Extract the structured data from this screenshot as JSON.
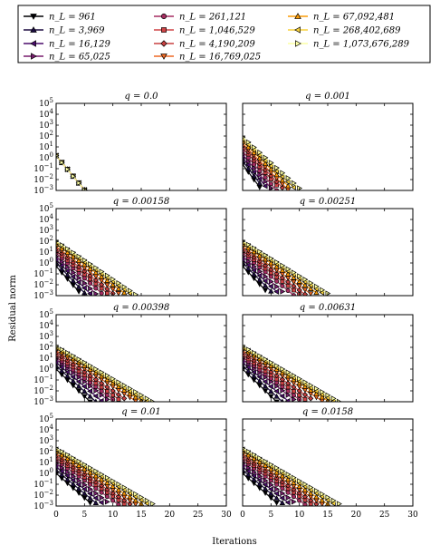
{
  "chart_data": {
    "type": "line",
    "xlabel": "Iterations",
    "ylabel": "Residual norm",
    "xlim": [
      0,
      30
    ],
    "ylim_exp": [
      -3,
      5
    ],
    "xticks": [
      "0",
      "5",
      "10",
      "15",
      "20",
      "25",
      "30"
    ],
    "yticks": [
      "10^5",
      "10^4",
      "10^3",
      "10^2",
      "10^1",
      "10^0",
      "10^-1",
      "10^-2",
      "10^-3"
    ],
    "y_scale": "log",
    "legend_placement": "top",
    "series": [
      {
        "name": "n_L = 961",
        "color": "#000004",
        "marker": "tri-down"
      },
      {
        "name": "n_L = 3,969",
        "color": "#1b0c41",
        "marker": "tri-up"
      },
      {
        "name": "n_L = 16,129",
        "color": "#4a0c6b",
        "marker": "tri-left"
      },
      {
        "name": "n_L = 65,025",
        "color": "#781c6d",
        "marker": "tri-right"
      },
      {
        "name": "n_L = 261,121",
        "color": "#a52c60",
        "marker": "circle"
      },
      {
        "name": "n_L = 1,046,529",
        "color": "#cf4446",
        "marker": "square"
      },
      {
        "name": "n_L = 4,190,209",
        "color": "#c84040",
        "marker": "diamond"
      },
      {
        "name": "n_L = 16,769,025",
        "color": "#ed6925",
        "marker": "tri-down"
      },
      {
        "name": "n_L = 67,092,481",
        "color": "#fb9b06",
        "marker": "tri-up"
      },
      {
        "name": "n_L = 268,402,689",
        "color": "#f7d13d",
        "marker": "tri-left"
      },
      {
        "name": "n_L = 1,073,676,289",
        "color": "#fcffa4",
        "marker": "tri-right"
      }
    ],
    "panels": [
      {
        "title": "q = 0.0",
        "start": [
          0.2,
          0.2,
          0.2,
          0.2,
          0.2,
          0.2,
          0.2,
          0.2,
          0.2,
          0.2,
          0.2
        ],
        "slope": [
          0.63,
          0.63,
          0.63,
          0.63,
          0.63,
          0.63,
          0.63,
          0.63,
          0.63,
          0.63,
          0.63
        ]
      },
      {
        "title": "q = 0.001",
        "start": [
          -0.6,
          -0.3,
          0.0,
          0.3,
          0.6,
          0.9,
          1.1,
          1.3,
          1.5,
          1.7,
          1.9
        ],
        "slope": [
          0.7,
          0.68,
          0.65,
          0.62,
          0.6,
          0.57,
          0.55,
          0.53,
          0.51,
          0.49,
          0.47
        ]
      },
      {
        "title": "q = 0.00158",
        "start": [
          -0.3,
          0.0,
          0.3,
          0.6,
          0.9,
          1.1,
          1.3,
          1.5,
          1.7,
          1.9,
          2.0
        ],
        "slope": [
          0.58,
          0.55,
          0.52,
          0.49,
          0.46,
          0.43,
          0.41,
          0.39,
          0.37,
          0.36,
          0.35
        ]
      },
      {
        "title": "q = 0.00251",
        "start": [
          -0.3,
          0.0,
          0.3,
          0.6,
          0.9,
          1.1,
          1.3,
          1.5,
          1.7,
          1.9,
          2.0
        ],
        "slope": [
          0.55,
          0.52,
          0.49,
          0.46,
          0.43,
          0.4,
          0.38,
          0.36,
          0.34,
          0.33,
          0.32
        ]
      },
      {
        "title": "q = 0.00398",
        "start": [
          0.0,
          0.3,
          0.6,
          0.9,
          1.1,
          1.3,
          1.5,
          1.7,
          1.9,
          2.0,
          2.1
        ],
        "slope": [
          0.5,
          0.47,
          0.44,
          0.41,
          0.39,
          0.37,
          0.35,
          0.33,
          0.32,
          0.31,
          0.3
        ]
      },
      {
        "title": "q = 0.00631",
        "start": [
          0.0,
          0.3,
          0.6,
          0.9,
          1.1,
          1.3,
          1.5,
          1.7,
          1.9,
          2.0,
          2.1
        ],
        "slope": [
          0.5,
          0.47,
          0.44,
          0.41,
          0.39,
          0.37,
          0.35,
          0.33,
          0.32,
          0.31,
          0.3
        ]
      },
      {
        "title": "q = 0.01",
        "start": [
          0.0,
          0.3,
          0.6,
          0.9,
          1.2,
          1.4,
          1.6,
          1.8,
          2.0,
          2.2,
          2.3
        ],
        "slope": [
          0.45,
          0.43,
          0.41,
          0.39,
          0.37,
          0.35,
          0.34,
          0.33,
          0.32,
          0.31,
          0.3
        ]
      },
      {
        "title": "q = 0.0158",
        "start": [
          0.0,
          0.3,
          0.6,
          0.9,
          1.2,
          1.4,
          1.6,
          1.8,
          2.0,
          2.2,
          2.3
        ],
        "slope": [
          0.45,
          0.43,
          0.41,
          0.39,
          0.37,
          0.35,
          0.34,
          0.33,
          0.32,
          0.31,
          0.3
        ]
      }
    ]
  }
}
